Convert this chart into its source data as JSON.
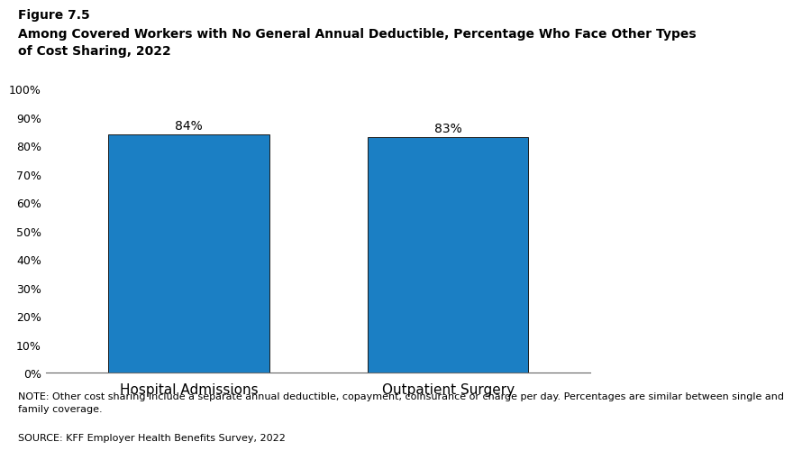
{
  "categories": [
    "Hospital Admissions",
    "Outpatient Surgery"
  ],
  "values": [
    84,
    83
  ],
  "bar_color": "#1b7fc4",
  "bar_edgecolor": "#1a1a1a",
  "title_line1": "Figure 7.5",
  "title_line2": "Among Covered Workers with No General Annual Deductible, Percentage Who Face Other Types\nof Cost Sharing, 2022",
  "ylim": [
    0,
    100
  ],
  "ytick_labels": [
    "0%",
    "10%",
    "20%",
    "30%",
    "40%",
    "50%",
    "60%",
    "70%",
    "80%",
    "90%",
    "100%"
  ],
  "ytick_values": [
    0,
    10,
    20,
    30,
    40,
    50,
    60,
    70,
    80,
    90,
    100
  ],
  "bar_labels": [
    "84%",
    "83%"
  ],
  "note_text": "NOTE: Other cost sharing include a separate annual deductible, copayment, coinsurance or charge per day. Percentages are similar between single and\nfamily coverage.",
  "source_text": "SOURCE: KFF Employer Health Benefits Survey, 2022",
  "background_color": "#ffffff",
  "tick_fontsize": 9,
  "bar_label_fontsize": 10,
  "note_fontsize": 8,
  "title1_fontsize": 10,
  "title2_fontsize": 10,
  "xlabel_fontsize": 11
}
